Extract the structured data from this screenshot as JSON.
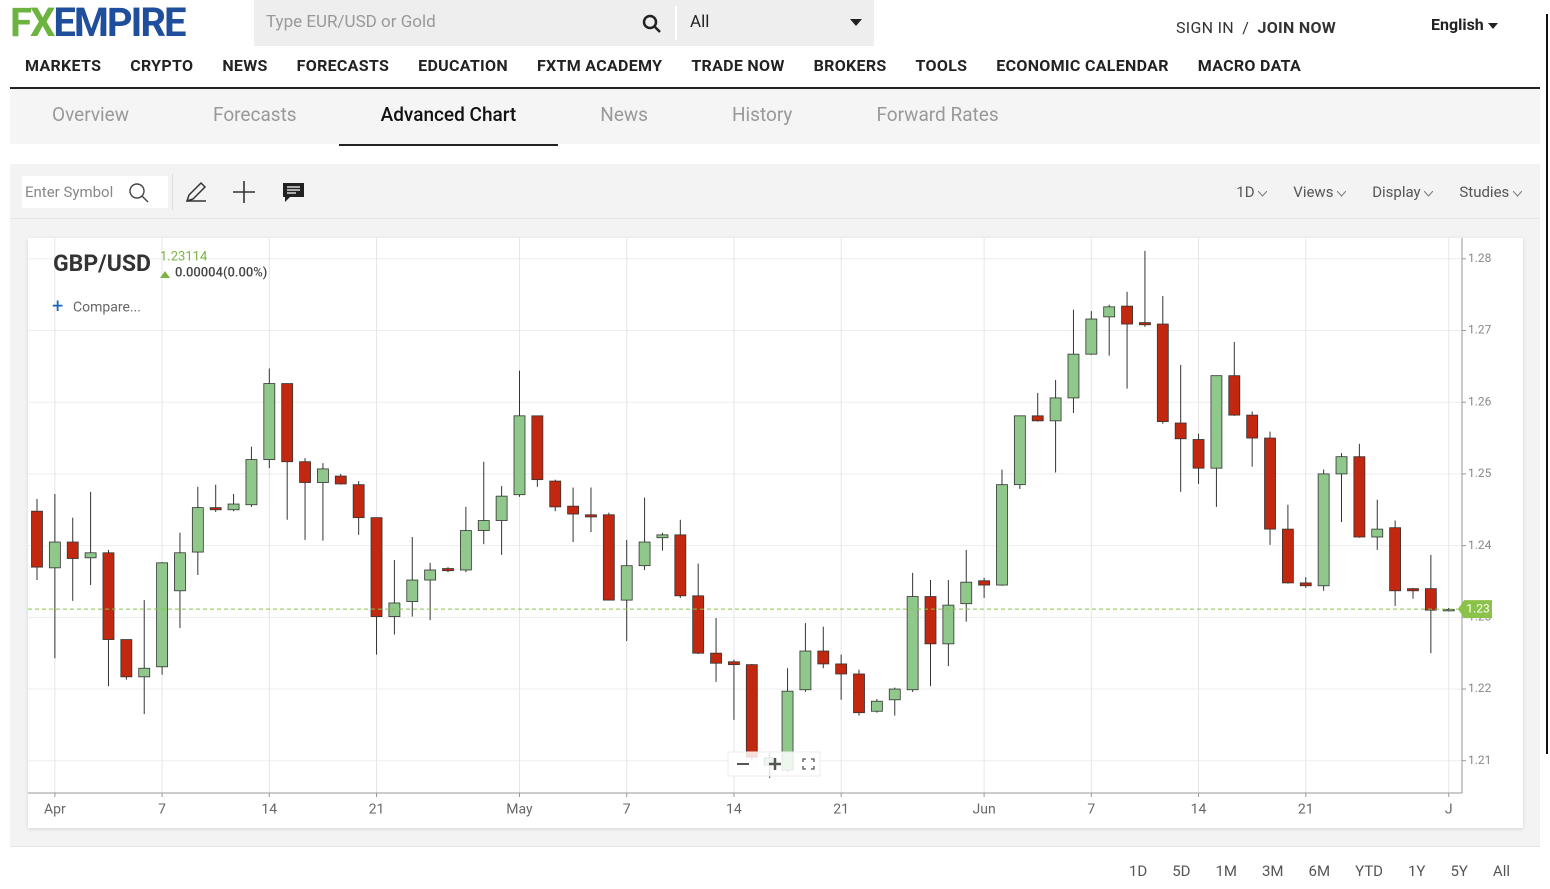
{
  "header": {
    "logo_fx": "FX",
    "logo_empire": "EMPIRE",
    "search_placeholder": "Type EUR/USD or Gold",
    "filter": "All",
    "sign_in": "SIGN IN",
    "separator": "/",
    "join_now": "JOIN NOW",
    "language": "English"
  },
  "nav": [
    "MARKETS",
    "CRYPTO",
    "NEWS",
    "FORECASTS",
    "EDUCATION",
    "FXTM ACADEMY",
    "TRADE NOW",
    "BROKERS",
    "TOOLS",
    "ECONOMIC CALENDAR",
    "MACRO DATA"
  ],
  "tabs": {
    "items": [
      "Overview",
      "Forecasts",
      "Advanced Chart",
      "News",
      "History",
      "Forward Rates"
    ],
    "active": 2
  },
  "toolbar": {
    "symbol_placeholder": "Enter Symbol",
    "menus": [
      "1D",
      "Views",
      "Display",
      "Studies"
    ]
  },
  "ranges": [
    "1D",
    "5D",
    "1M",
    "3M",
    "6M",
    "YTD",
    "1Y",
    "5Y",
    "All"
  ],
  "chart_data": {
    "type": "candlestick",
    "symbol": "GBP/USD",
    "price": "1.23114",
    "change": "0.00004(0.00%)",
    "compare": "Compare...",
    "last_price": 1.23114,
    "last_label": "1.23",
    "up_color": "#8fc88a",
    "down_color": "#c1280f",
    "last_color": "#8bc34a",
    "categories": [
      null,
      "Apr",
      null,
      null,
      null,
      null,
      null,
      "7",
      null,
      null,
      null,
      null,
      null,
      "14",
      null,
      null,
      null,
      null,
      null,
      "21",
      null,
      null,
      null,
      null,
      null,
      null,
      null,
      "May",
      null,
      null,
      null,
      null,
      null,
      "7",
      null,
      null,
      null,
      null,
      null,
      "14",
      null,
      null,
      null,
      null,
      null,
      "21",
      null,
      null,
      null,
      null,
      null,
      null,
      null,
      "Jun",
      null,
      null,
      null,
      null,
      null,
      "7",
      null,
      null,
      null,
      null,
      null,
      "14",
      null,
      null,
      null,
      null,
      null,
      "21",
      null,
      null,
      null,
      null,
      null,
      null,
      null,
      "J"
    ],
    "open": [
      1.2448,
      1.2369,
      1.2405,
      1.2383,
      1.239,
      1.2269,
      1.2217,
      1.2231,
      1.2337,
      1.2391,
      1.2453,
      1.245,
      1.2457,
      1.252,
      1.2626,
      1.2517,
      1.2488,
      1.2497,
      1.2485,
      1.2439,
      1.2301,
      1.2322,
      1.2352,
      1.2368,
      1.2366,
      1.2421,
      1.2435,
      1.2471,
      1.2581,
      1.249,
      1.2455,
      1.2443,
      1.2443,
      1.2324,
      1.2372,
      1.2411,
      1.2415,
      1.233,
      1.225,
      1.2238,
      1.2234,
      1.2094,
      1.2087,
      1.2199,
      1.2253,
      1.2235,
      1.2221,
      1.2169,
      1.2185,
      1.2199,
      1.2329,
      1.2263,
      1.2319,
      1.2351,
      1.2345,
      1.2485,
      1.2581,
      1.2574,
      1.2606,
      1.2667,
      1.2719,
      1.2734,
      1.2711,
      1.2709,
      1.2571,
      1.2548,
      1.2508,
      1.2637,
      1.2582,
      1.255,
      1.2423,
      1.2348,
      1.2344,
      1.25,
      1.2524,
      1.2412,
      1.2425,
      1.234,
      1.234,
      1.2309
    ],
    "high": [
      1.2465,
      1.2472,
      1.2439,
      1.2475,
      1.2394,
      1.2269,
      1.2324,
      1.2377,
      1.2418,
      1.2482,
      1.2485,
      1.2472,
      1.2538,
      1.2647,
      1.2626,
      1.2522,
      1.2515,
      1.25,
      1.249,
      1.2439,
      1.238,
      1.2412,
      1.2376,
      1.237,
      1.2454,
      1.2517,
      1.2483,
      1.2644,
      1.2581,
      1.2492,
      1.2481,
      1.2481,
      1.2446,
      1.2408,
      1.2467,
      1.2418,
      1.2436,
      1.2375,
      1.2299,
      1.2241,
      1.2235,
      1.2112,
      1.2229,
      1.2292,
      1.2287,
      1.2248,
      1.2227,
      1.2186,
      1.2202,
      1.2362,
      1.2352,
      1.2352,
      1.2394,
      1.2355,
      1.2506,
      1.2581,
      1.2613,
      1.2631,
      1.2729,
      1.2727,
      1.2736,
      1.2754,
      1.2811,
      1.2748,
      1.2652,
      1.2556,
      1.2637,
      1.2684,
      1.2587,
      1.2559,
      1.2457,
      1.2356,
      1.2506,
      1.2529,
      1.2542,
      1.2464,
      1.2435,
      1.2341,
      1.2387,
      1.2313
    ],
    "low": [
      1.2352,
      1.2243,
      1.2323,
      1.2345,
      1.2204,
      1.2213,
      1.2165,
      1.222,
      1.2285,
      1.2359,
      1.2447,
      1.2448,
      1.2454,
      1.2508,
      1.2436,
      1.2408,
      1.2407,
      1.2485,
      1.2415,
      1.2248,
      1.2276,
      1.2301,
      1.2296,
      1.2363,
      1.2363,
      1.2402,
      1.2387,
      1.2468,
      1.2482,
      1.2448,
      1.2405,
      1.2419,
      1.2324,
      1.2267,
      1.2366,
      1.2393,
      1.2327,
      1.2249,
      1.221,
      1.2157,
      1.2101,
      1.2076,
      1.2084,
      1.2196,
      1.2229,
      1.2185,
      1.2163,
      1.2167,
      1.2163,
      1.2196,
      1.2204,
      1.2232,
      1.2294,
      1.2327,
      1.2344,
      1.2479,
      1.2573,
      1.2502,
      1.2585,
      1.2666,
      1.2665,
      1.2619,
      1.2705,
      1.257,
      1.2475,
      1.2486,
      1.2454,
      1.2581,
      1.251,
      1.2401,
      1.2347,
      1.2341,
      1.2337,
      1.2433,
      1.2411,
      1.2394,
      1.2316,
      1.2326,
      1.225,
      1.2308
    ],
    "close": [
      1.237,
      1.2405,
      1.2382,
      1.239,
      1.2269,
      1.2217,
      1.2229,
      1.2376,
      1.239,
      1.2453,
      1.245,
      1.2458,
      1.252,
      1.2626,
      1.2517,
      1.2488,
      1.2507,
      1.2486,
      1.2439,
      1.2301,
      1.232,
      1.2352,
      1.2366,
      1.2365,
      1.2421,
      1.2435,
      1.2469,
      1.2581,
      1.2492,
      1.2454,
      1.2444,
      1.244,
      1.2324,
      1.2372,
      1.2405,
      1.2415,
      1.233,
      1.225,
      1.2236,
      1.2234,
      1.2105,
      1.2104,
      1.2197,
      1.2253,
      1.2235,
      1.2221,
      1.2167,
      1.2183,
      1.22,
      1.2329,
      1.2263,
      1.2317,
      1.2349,
      1.2345,
      1.2485,
      1.2581,
      1.2574,
      1.2606,
      1.2667,
      1.2716,
      1.2733,
      1.2709,
      1.2708,
      1.2573,
      1.2549,
      1.2508,
      1.2637,
      1.2582,
      1.255,
      1.2423,
      1.2348,
      1.2344,
      1.25,
      1.2524,
      1.2412,
      1.2423,
      1.2337,
      1.2337,
      1.231,
      1.2311
    ],
    "ylim": [
      1.2055,
      1.2829
    ],
    "yticks": [
      1.21,
      1.22,
      1.23,
      1.24,
      1.25,
      1.26,
      1.27,
      1.28
    ],
    "grid": true
  }
}
